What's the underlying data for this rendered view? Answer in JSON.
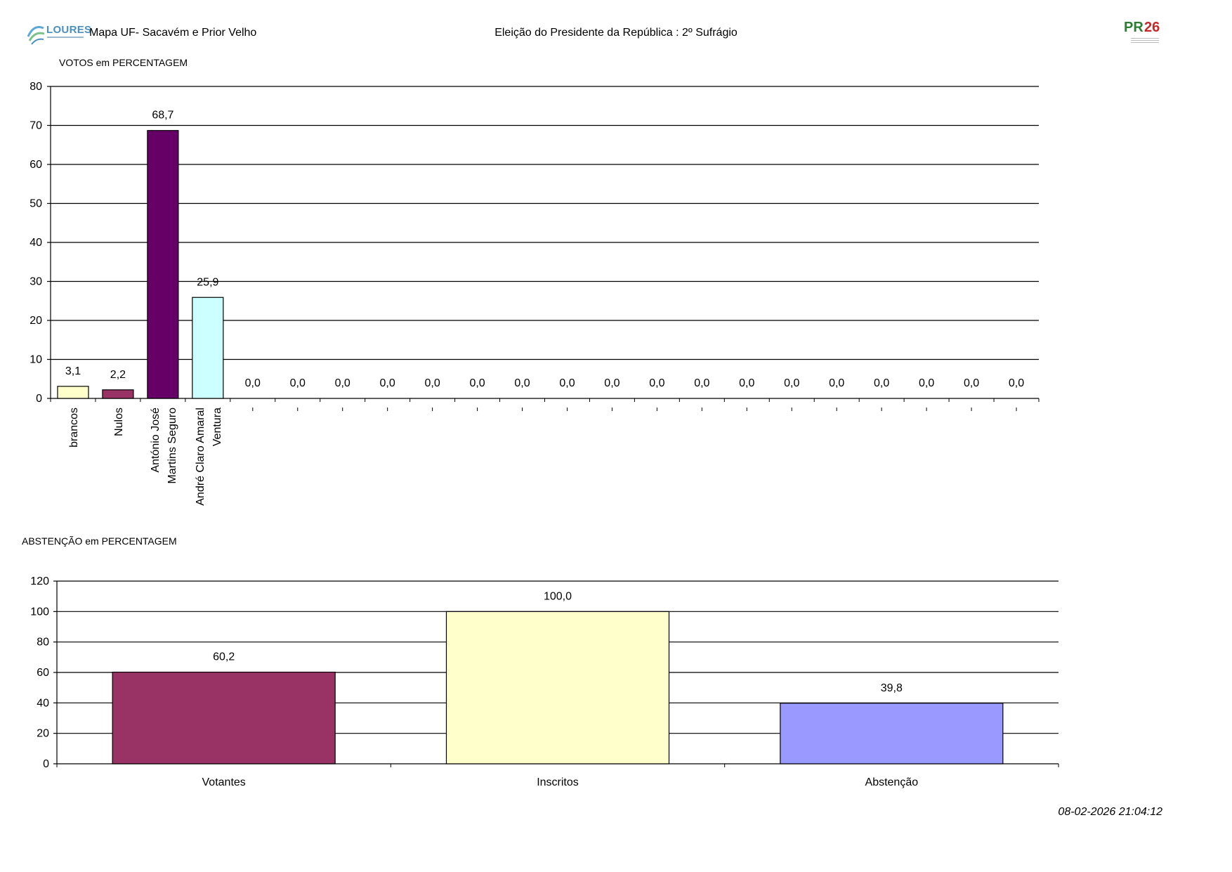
{
  "header": {
    "logo_text": "LOURES",
    "title_left": "Mapa UF- Sacavém e Prior Velho",
    "title_center": "Eleição do Presidente da República : 2º Sufrágio",
    "logo_right": "PR 26"
  },
  "timestamp": "08-02-2026 21:04:12",
  "chart_data": [
    {
      "type": "bar",
      "title": "VOTOS em PERCENTAGEM",
      "ylim": [
        0,
        80
      ],
      "yticks": [
        0,
        10,
        20,
        30,
        40,
        50,
        60,
        70,
        80
      ],
      "grid": true,
      "categories": [
        "brancos",
        "Nulos",
        "António José Martins Seguro",
        "André Claro Amaral Ventura",
        "",
        "",
        "",
        "",
        "",
        "",
        "",
        "",
        "",
        "",
        "",
        "",
        "",
        "",
        "",
        "",
        "",
        ""
      ],
      "category_lines": [
        [
          "brancos"
        ],
        [
          "Nulos"
        ],
        [
          "António José",
          "Martins Seguro"
        ],
        [
          "André Claro Amaral",
          "Ventura"
        ]
      ],
      "values": [
        3.1,
        2.2,
        68.7,
        25.9,
        0,
        0,
        0,
        0,
        0,
        0,
        0,
        0,
        0,
        0,
        0,
        0,
        0,
        0,
        0,
        0,
        0,
        0
      ],
      "value_labels": [
        "3,1",
        "2,2",
        "68,7",
        "25,9",
        "0,0",
        "0,0",
        "0,0",
        "0,0",
        "0,0",
        "0,0",
        "0,0",
        "0,0",
        "0,0",
        "0,0",
        "0,0",
        "0,0",
        "0,0",
        "0,0",
        "0,0",
        "0,0",
        "0,0",
        "0,0"
      ],
      "colors": [
        "#ffffcc",
        "#993366",
        "#660066",
        "#ccffff"
      ]
    },
    {
      "type": "bar",
      "title": "ABSTENÇÃO em PERCENTAGEM",
      "ylim": [
        0,
        120
      ],
      "yticks": [
        0,
        20,
        40,
        60,
        80,
        100,
        120
      ],
      "grid": true,
      "categories": [
        "Votantes",
        "Inscritos",
        "Abstenção"
      ],
      "values": [
        60.2,
        100.0,
        39.8
      ],
      "value_labels": [
        "60,2",
        "100,0",
        "39,8"
      ],
      "colors": [
        "#993366",
        "#ffffcc",
        "#9999ff"
      ]
    }
  ]
}
